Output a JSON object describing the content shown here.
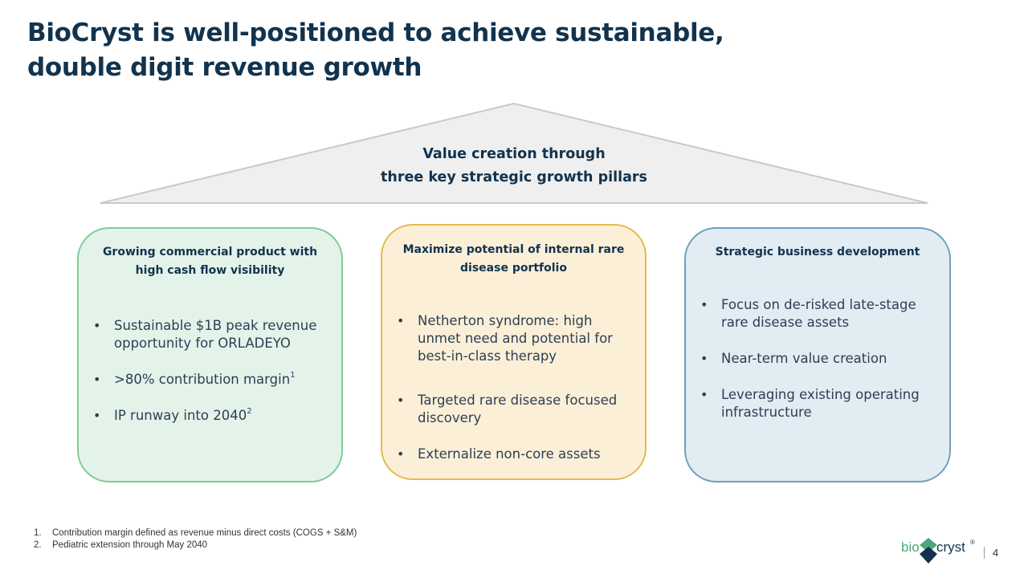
{
  "title": {
    "line1": "BioCryst is well-positioned to achieve sustainable,",
    "line2": "double digit revenue growth"
  },
  "roof": {
    "line1": "Value creation through",
    "line2": "three key strategic growth pillars"
  },
  "pillars": [
    {
      "heading_line1": "Growing commercial product with",
      "heading_line2": "high cash flow visibility",
      "bullets": [
        {
          "text": "Sustainable $1B peak revenue opportunity for ORLADEYO"
        },
        {
          "text": ">80% contribution margin",
          "sup": "1"
        },
        {
          "text": "IP runway into 2040",
          "sup": "2"
        }
      ]
    },
    {
      "heading_line1": "Maximize potential of internal rare",
      "heading_line2": "disease portfolio",
      "bullets": [
        {
          "text": "Netherton syndrome: high unmet need and potential for best-in-class therapy"
        },
        {
          "text": "Targeted rare disease focused discovery"
        },
        {
          "text": "Externalize non-core assets"
        }
      ]
    },
    {
      "heading_line1": "Strategic business development",
      "bullets": [
        {
          "text": "Focus on de-risked late-stage rare disease assets"
        },
        {
          "text": "Near-term value creation"
        },
        {
          "text": "Leveraging existing operating infrastructure"
        }
      ]
    }
  ],
  "footnotes": [
    {
      "num": "1.",
      "text": "Contribution margin defined as revenue minus direct costs (COGS + S&M)"
    },
    {
      "num": "2.",
      "text": "Pediatric extension through May 2040"
    }
  ],
  "logo": {
    "bio": "bio",
    "cryst": "cryst",
    "mark": "®"
  },
  "page_number": "4",
  "colors": {
    "title": "#12334d",
    "green_fill": "#e4f3ea",
    "green_border": "#7fcb95",
    "yellow_fill": "#fcefd8",
    "yellow_border": "#e7b94c",
    "blue_fill": "#e1ecf3",
    "blue_border": "#6e9fbb"
  }
}
